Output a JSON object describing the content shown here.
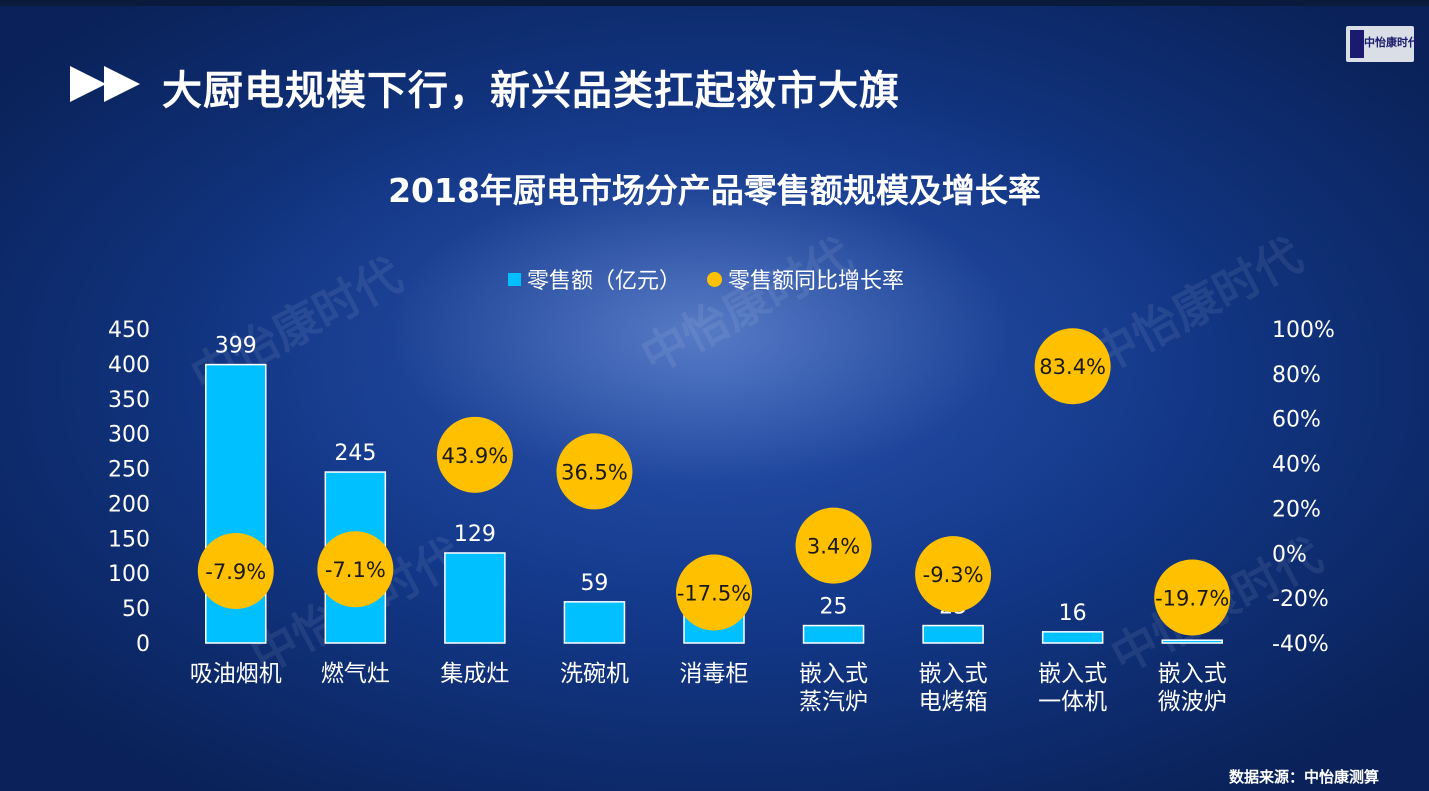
{
  "header": {
    "title": "大厨电规模下行，新兴品类扛起救市大旗"
  },
  "logo": {
    "text": "中怡康时代"
  },
  "watermark": {
    "text": "中怡康时代"
  },
  "source": "数据来源：中怡康测算",
  "colors": {
    "bar": "#00c0ff",
    "rate": "#ffc000",
    "background": "#143a8c"
  },
  "legend": {
    "bar_label": "零售额（亿元）",
    "rate_label": "零售额同比增长率"
  },
  "chart_data": {
    "type": "bar",
    "title": "2018年厨电市场分产品零售额规模及增长率",
    "categories": [
      [
        "吸油烟机"
      ],
      [
        "燃气灶"
      ],
      [
        "集成灶"
      ],
      [
        "洗碗机"
      ],
      [
        "消毒柜"
      ],
      [
        "嵌入式",
        "蒸汽炉"
      ],
      [
        "嵌入式",
        "电烤箱"
      ],
      [
        "嵌入式",
        "一体机"
      ],
      [
        "嵌入式",
        "微波炉"
      ]
    ],
    "series": [
      {
        "name": "零售额（亿元）",
        "type": "bar",
        "axis": "left",
        "values": [
          399,
          245,
          129,
          59,
          55,
          25,
          25,
          16,
          4
        ]
      },
      {
        "name": "零售额同比增长率",
        "type": "scatter",
        "axis": "right",
        "values": [
          -7.9,
          -7.1,
          43.9,
          36.5,
          -17.5,
          3.4,
          -9.3,
          83.4,
          -19.7
        ],
        "labels": [
          "-7.9%",
          "-7.1%",
          "43.9%",
          "36.5%",
          "-17.5%",
          "3.4%",
          "-9.3%",
          "83.4%",
          "-19.7%"
        ]
      }
    ],
    "y_left": {
      "min": 0,
      "max": 450,
      "ticks": [
        "0",
        "50",
        "100",
        "150",
        "200",
        "250",
        "300",
        "350",
        "400",
        "450"
      ]
    },
    "y_right": {
      "min": -40,
      "max": 100,
      "ticks": [
        "-40%",
        "-20%",
        "0%",
        "20%",
        "40%",
        "60%",
        "80%",
        "100%"
      ]
    },
    "grid": false,
    "legend_position": "top"
  }
}
